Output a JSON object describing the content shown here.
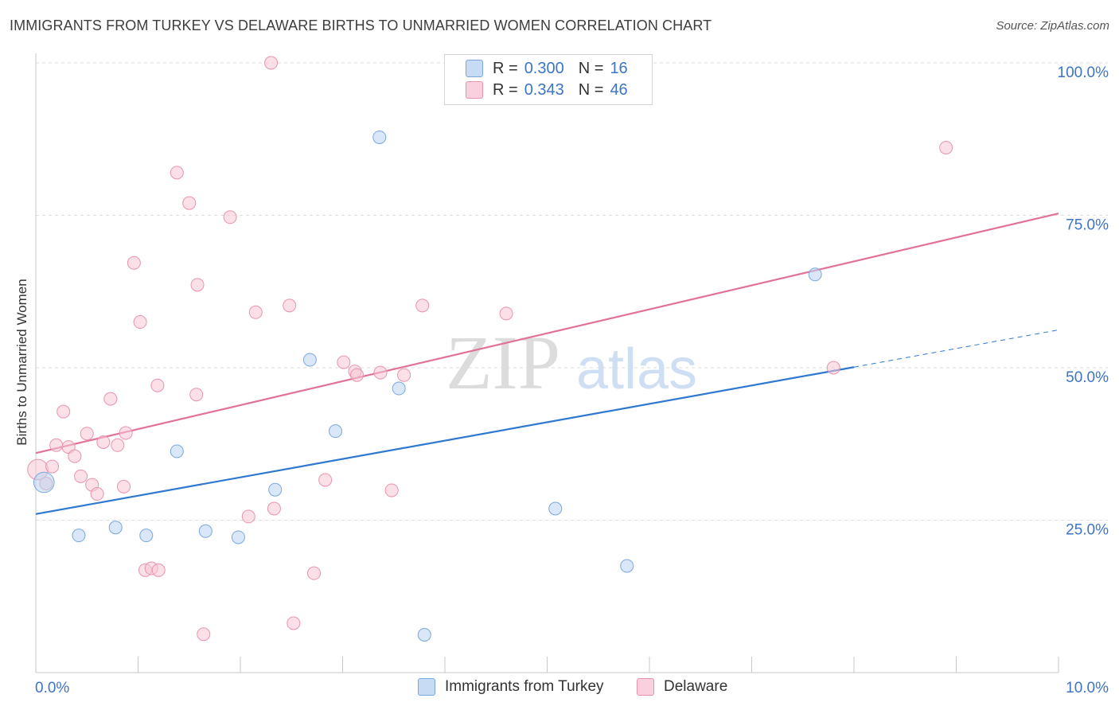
{
  "title": "IMMIGRANTS FROM TURKEY VS DELAWARE BIRTHS TO UNMARRIED WOMEN CORRELATION CHART",
  "source": "Source: ZipAtlas.com",
  "watermark": {
    "zip": "ZIP",
    "atlas": "atlas"
  },
  "legend": {
    "series1": {
      "r_label": "R =",
      "r_value": "0.300",
      "n_label": "N =",
      "n_value": "16"
    },
    "series2": {
      "r_label": "R =",
      "r_value": "0.343",
      "n_label": "N =",
      "n_value": "46"
    }
  },
  "colors": {
    "blue_fill": "#b9d3f3",
    "blue_stroke": "#7aa7dd",
    "blue_line": "#2f78cf",
    "pink_fill": "#f7c6d4",
    "pink_stroke": "#e894ae",
    "pink_line": "#e2719a",
    "tick_text": "#3b74c9",
    "grid": "#dcdcdc"
  },
  "chart_data": {
    "type": "scatter",
    "title": "IMMIGRANTS FROM TURKEY VS DELAWARE BIRTHS TO UNMARRIED WOMEN CORRELATION CHART",
    "xlabel": "",
    "ylabel": "Births to Unmarried Women",
    "xlim": [
      0,
      10
    ],
    "ylim": [
      0,
      100
    ],
    "x_tick_labels": [
      "0.0%",
      "10.0%"
    ],
    "y_ticks": [
      25,
      50,
      75,
      100
    ],
    "y_tick_labels": [
      "25.0%",
      "50.0%",
      "75.0%",
      "100.0%"
    ],
    "series": [
      {
        "name": "Immigrants from Turkey",
        "color": "blue",
        "points": [
          [
            0.08,
            31.2,
            1.6
          ],
          [
            0.42,
            22.5,
            1
          ],
          [
            0.78,
            23.8,
            1
          ],
          [
            1.08,
            22.5,
            1
          ],
          [
            1.38,
            36.3,
            1
          ],
          [
            1.66,
            23.2,
            1
          ],
          [
            1.98,
            22.2,
            1
          ],
          [
            2.34,
            30.0,
            1
          ],
          [
            2.68,
            51.3,
            1
          ],
          [
            2.93,
            39.6,
            1
          ],
          [
            3.36,
            87.8,
            1
          ],
          [
            3.55,
            46.6,
            1
          ],
          [
            3.8,
            6.2,
            1
          ],
          [
            5.08,
            26.9,
            1
          ],
          [
            5.78,
            17.5,
            1
          ],
          [
            7.62,
            65.3,
            1
          ]
        ],
        "trend": {
          "x": [
            0,
            8.0
          ],
          "y": [
            26.0,
            50.1
          ]
        },
        "trend_dashed": {
          "x": [
            8.0,
            10.0
          ],
          "y": [
            50.1,
            56.2
          ]
        }
      },
      {
        "name": "Delaware",
        "color": "pink",
        "points": [
          [
            0.02,
            33.3,
            1.6
          ],
          [
            0.1,
            31.0,
            1
          ],
          [
            0.16,
            33.8,
            1
          ],
          [
            0.2,
            37.3,
            1
          ],
          [
            0.27,
            42.8,
            1
          ],
          [
            0.32,
            37.0,
            1
          ],
          [
            0.38,
            35.5,
            1
          ],
          [
            0.44,
            32.2,
            1
          ],
          [
            0.5,
            39.2,
            1
          ],
          [
            0.55,
            30.8,
            1
          ],
          [
            0.6,
            29.3,
            1
          ],
          [
            0.66,
            37.8,
            1
          ],
          [
            0.73,
            44.9,
            1
          ],
          [
            0.8,
            37.3,
            1
          ],
          [
            0.86,
            30.5,
            1
          ],
          [
            0.88,
            39.3,
            1
          ],
          [
            0.96,
            67.2,
            1
          ],
          [
            1.02,
            57.5,
            1
          ],
          [
            1.07,
            16.8,
            1
          ],
          [
            1.13,
            17.1,
            1
          ],
          [
            1.2,
            16.8,
            1
          ],
          [
            1.19,
            47.1,
            1
          ],
          [
            1.38,
            82.0,
            1
          ],
          [
            1.5,
            77.0,
            1
          ],
          [
            1.57,
            45.6,
            1
          ],
          [
            1.58,
            63.6,
            1
          ],
          [
            1.64,
            6.3,
            1
          ],
          [
            1.9,
            74.7,
            1
          ],
          [
            2.08,
            25.6,
            1
          ],
          [
            2.15,
            59.1,
            1
          ],
          [
            2.3,
            100.0,
            1
          ],
          [
            2.33,
            26.9,
            1
          ],
          [
            2.48,
            60.2,
            1
          ],
          [
            2.52,
            8.1,
            1
          ],
          [
            2.72,
            16.3,
            1
          ],
          [
            2.83,
            31.6,
            1
          ],
          [
            3.01,
            50.9,
            1
          ],
          [
            3.12,
            49.4,
            1
          ],
          [
            3.14,
            48.8,
            1
          ],
          [
            3.37,
            49.2,
            1
          ],
          [
            3.48,
            29.9,
            1
          ],
          [
            3.6,
            48.8,
            1
          ],
          [
            3.78,
            60.2,
            1
          ],
          [
            4.6,
            58.9,
            1
          ],
          [
            7.8,
            50.0,
            1
          ],
          [
            8.9,
            86.1,
            1
          ]
        ],
        "trend": {
          "x": [
            0,
            10.0
          ],
          "y": [
            36.0,
            75.3
          ]
        }
      }
    ]
  }
}
